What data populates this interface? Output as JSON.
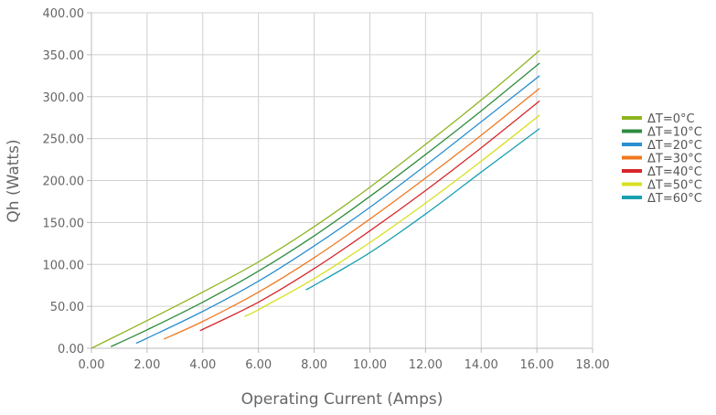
{
  "chart_data": {
    "type": "line",
    "title": "",
    "xlabel": "Operating Current (Amps)",
    "ylabel": "Qh (Watts)",
    "xlim": [
      0,
      18
    ],
    "ylim": [
      0,
      400
    ],
    "x_ticks": [
      "0.00",
      "2.00",
      "4.00",
      "6.00",
      "8.00",
      "10.00",
      "12.00",
      "14.00",
      "16.00",
      "18.00"
    ],
    "y_ticks": [
      "0.00",
      "50.00",
      "100.00",
      "150.00",
      "200.00",
      "250.00",
      "300.00",
      "350.00",
      "400.00"
    ],
    "x_tick_values": [
      0,
      2,
      4,
      6,
      8,
      10,
      12,
      14,
      16,
      18
    ],
    "y_tick_values": [
      0,
      50,
      100,
      150,
      200,
      250,
      300,
      350,
      400
    ],
    "grid": true,
    "legend_position": "right",
    "series": [
      {
        "name": "ΔT=0°C",
        "color": "#8db51e",
        "x": [
          0.0,
          2.0,
          4.0,
          6.0,
          8.0,
          10.0,
          12.0,
          14.0,
          16.1
        ],
        "y": [
          0,
          33,
          67,
          103,
          145,
          192,
          243,
          296,
          355
        ]
      },
      {
        "name": "ΔT=10°C",
        "color": "#2e8b3e",
        "x": [
          0.7,
          2.0,
          4.0,
          6.0,
          8.0,
          10.0,
          12.0,
          14.0,
          16.1
        ],
        "y": [
          2,
          22,
          55,
          92,
          134,
          181,
          231,
          283,
          340
        ]
      },
      {
        "name": "ΔT=20°C",
        "color": "#2a8fd0",
        "x": [
          1.6,
          2.0,
          4.0,
          6.0,
          8.0,
          10.0,
          12.0,
          14.0,
          16.1
        ],
        "y": [
          6,
          12,
          44,
          80,
          122,
          168,
          218,
          270,
          325
        ]
      },
      {
        "name": "ΔT=30°C",
        "color": "#f07820",
        "x": [
          2.6,
          4.0,
          6.0,
          8.0,
          10.0,
          12.0,
          14.0,
          16.1
        ],
        "y": [
          11,
          32,
          67,
          108,
          154,
          203,
          254,
          310
        ]
      },
      {
        "name": "ΔT=40°C",
        "color": "#d8252a",
        "x": [
          3.9,
          6.0,
          8.0,
          10.0,
          12.0,
          14.0,
          16.1
        ],
        "y": [
          21,
          55,
          95,
          140,
          188,
          239,
          295
        ]
      },
      {
        "name": "ΔT=50°C",
        "color": "#d8e020",
        "x": [
          5.5,
          6.0,
          8.0,
          10.0,
          12.0,
          14.0,
          16.1
        ],
        "y": [
          38,
          46,
          83,
          126,
          173,
          223,
          278
        ]
      },
      {
        "name": "ΔT=60°C",
        "color": "#1aa0b0",
        "x": [
          7.7,
          8.0,
          10.0,
          12.0,
          14.0,
          16.1
        ],
        "y": [
          70,
          75,
          114,
          160,
          210,
          262
        ]
      }
    ]
  }
}
